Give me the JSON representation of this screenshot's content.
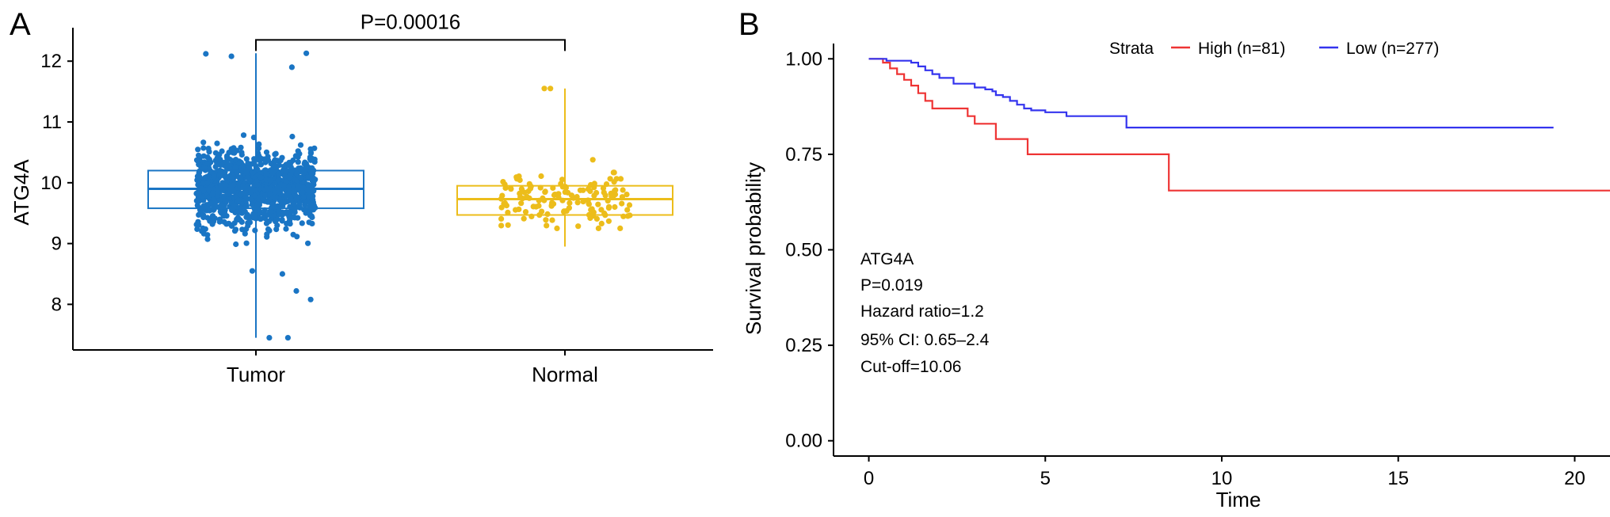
{
  "panels": {
    "a": "A",
    "b": "B"
  },
  "chart_data": [
    {
      "type": "box",
      "panel": "A",
      "ylabel": "ATG4A",
      "xlabel": "",
      "ylim": [
        7.25,
        12.55
      ],
      "yticks": [
        8,
        9,
        10,
        11,
        12
      ],
      "categories": [
        "Tumor",
        "Normal"
      ],
      "colors": {
        "Tumor": "#1a75c4",
        "Normal": "#ecbd1b"
      },
      "groups": [
        {
          "name": "Tumor",
          "n_points_approx": 1100,
          "min": 7.45,
          "q1": 9.58,
          "median": 9.9,
          "q3": 10.2,
          "max": 12.13,
          "outliers": [
            11.9,
            12.13,
            12.08,
            12.12,
            8.22,
            8.08,
            7.45,
            7.45,
            8.55,
            8.5
          ]
        },
        {
          "name": "Normal",
          "n_points_approx": 140,
          "min": 8.95,
          "q1": 9.47,
          "median": 9.73,
          "q3": 9.95,
          "max": 11.55,
          "outliers": [
            11.55,
            11.55
          ]
        }
      ],
      "significance": {
        "label": "P=0.00016",
        "between": [
          "Tumor",
          "Normal"
        ],
        "y": 12.35
      }
    },
    {
      "type": "line",
      "subtype": "kaplan-meier",
      "panel": "B",
      "xlabel": "Time",
      "ylabel": "Survival probability",
      "xlim": [
        -1,
        21
      ],
      "ylim": [
        -0.04,
        1.04
      ],
      "xticks": [
        0,
        5,
        10,
        15,
        20
      ],
      "yticks": [
        0.0,
        0.25,
        0.5,
        0.75,
        1.0
      ],
      "ytick_labels": [
        "0.00",
        "0.25",
        "0.50",
        "0.75",
        "1.00"
      ],
      "legend": {
        "title": "Strata",
        "position": "top"
      },
      "series": [
        {
          "name": "High (n=81)",
          "color": "#ee3434",
          "x": [
            0,
            0.4,
            0.6,
            0.8,
            1.0,
            1.2,
            1.4,
            1.6,
            1.8,
            2.8,
            3.0,
            3.6,
            4.5,
            8.5,
            21
          ],
          "y": [
            1.0,
            0.99,
            0.975,
            0.96,
            0.945,
            0.93,
            0.91,
            0.89,
            0.87,
            0.85,
            0.83,
            0.79,
            0.75,
            0.655,
            0.655
          ]
        },
        {
          "name": "Low (n=277)",
          "color": "#3434ee",
          "x": [
            0,
            0.5,
            1.2,
            1.4,
            1.6,
            1.8,
            2.0,
            2.4,
            3.0,
            3.3,
            3.5,
            3.6,
            3.8,
            4.0,
            4.2,
            4.4,
            4.6,
            5.0,
            5.6,
            7.3,
            19.4
          ],
          "y": [
            1.0,
            0.995,
            0.99,
            0.98,
            0.97,
            0.96,
            0.95,
            0.935,
            0.925,
            0.92,
            0.915,
            0.905,
            0.9,
            0.89,
            0.88,
            0.87,
            0.865,
            0.86,
            0.85,
            0.82,
            0.82
          ]
        }
      ],
      "annotations": [
        "ATG4A",
        "P=0.019",
        "Hazard ratio=1.2",
        "95% CI: 0.65–2.4",
        "Cut-off=10.06"
      ]
    }
  ]
}
